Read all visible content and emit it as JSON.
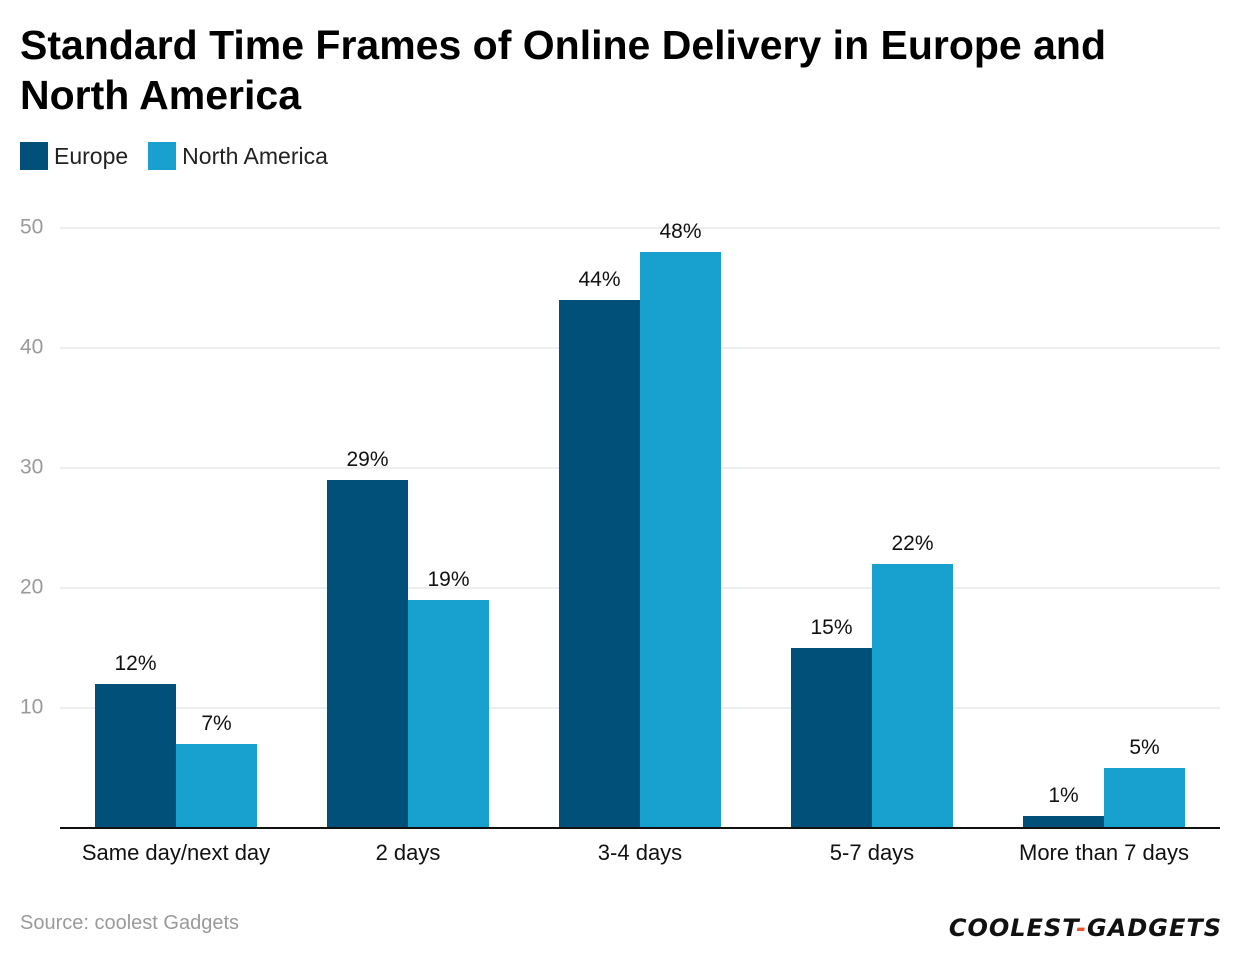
{
  "chart_data": {
    "type": "bar",
    "title": "Standard Time Frames of Online Delivery in Europe and North America",
    "categories": [
      "Same day/next day",
      "2 days",
      "3-4 days",
      "5-7 days",
      "More than 7 days"
    ],
    "series": [
      {
        "name": "Europe",
        "color": "#00507a",
        "values": [
          12,
          29,
          44,
          15,
          1
        ],
        "labels": [
          "12%",
          "29%",
          "44%",
          "15%",
          "1%"
        ]
      },
      {
        "name": "North America",
        "color": "#18a1cf",
        "values": [
          7,
          19,
          48,
          22,
          5
        ],
        "labels": [
          "7%",
          "19%",
          "48%",
          "22%",
          "5%"
        ]
      }
    ],
    "yticks": [
      10,
      20,
      30,
      40,
      50
    ],
    "ylim": [
      0,
      50
    ],
    "xlabel": "",
    "ylabel": "",
    "grid": true,
    "legend": "top-left"
  },
  "footer": {
    "source": "Source: coolest Gadgets",
    "brand_left": "COOLEST",
    "brand_dash": "-",
    "brand_right": "GADGETS"
  }
}
